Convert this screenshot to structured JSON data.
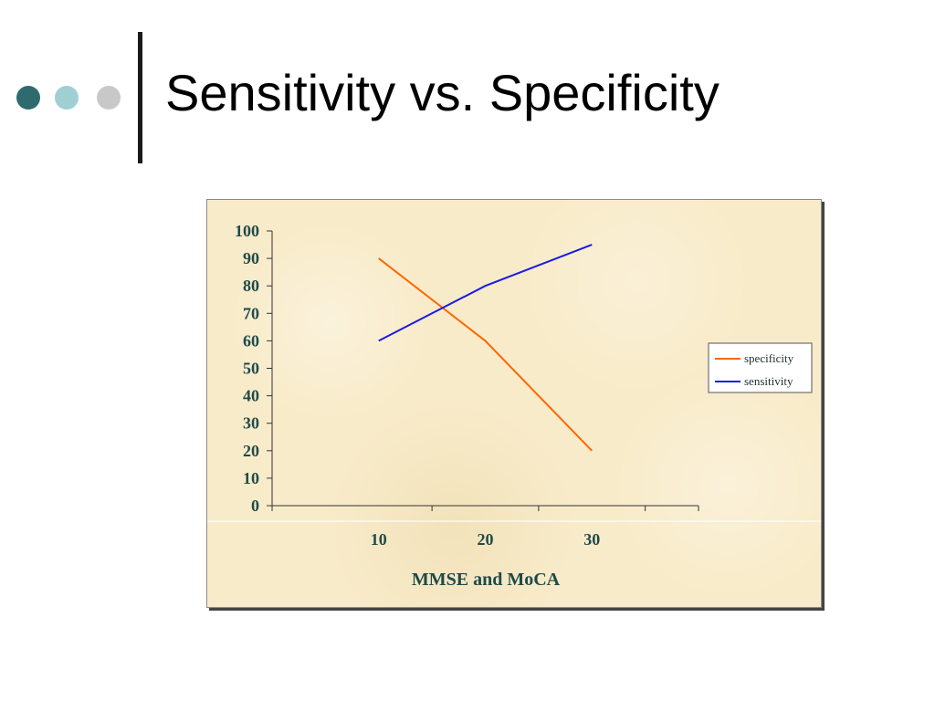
{
  "slide": {
    "title": "Sensitivity vs. Specificity",
    "bullet_colors": [
      "#2f6b6e",
      "#9fcfd3",
      "#c8c8c8"
    ]
  },
  "chart_data": {
    "type": "line",
    "title": "",
    "xlabel": "MMSE and MoCA",
    "ylabel": "",
    "x": [
      10,
      20,
      30
    ],
    "categories": [
      "10",
      "20",
      "30"
    ],
    "ylim": [
      0,
      100
    ],
    "yticks": [
      0,
      10,
      20,
      30,
      40,
      50,
      60,
      70,
      80,
      90,
      100
    ],
    "grid": false,
    "legend_position": "right",
    "series": [
      {
        "name": "specificity",
        "color": "#ff6600",
        "values": [
          90,
          60,
          20
        ]
      },
      {
        "name": "sensitivity",
        "color": "#1a1ae6",
        "values": [
          60,
          80,
          95
        ]
      }
    ],
    "background": "#f8ebc9"
  }
}
